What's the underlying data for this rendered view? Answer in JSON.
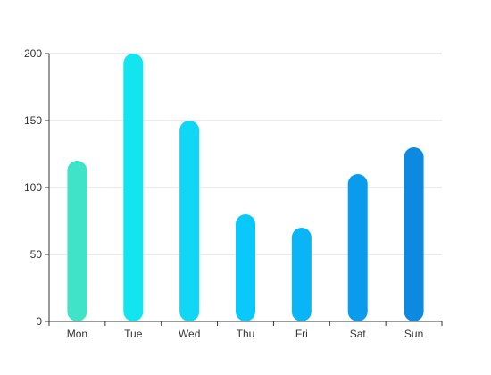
{
  "chart_data": {
    "type": "bar",
    "categories": [
      "Mon",
      "Tue",
      "Wed",
      "Thu",
      "Fri",
      "Sat",
      "Sun"
    ],
    "values": [
      120,
      200,
      150,
      80,
      70,
      110,
      130
    ],
    "colors": [
      "#3fe3c8",
      "#13e5f0",
      "#0fd7f5",
      "#0bc8fb",
      "#0ab5f7",
      "#099cec",
      "#0d89e0"
    ],
    "ylim": [
      0,
      200
    ],
    "yticks": [
      0,
      50,
      100,
      150,
      200
    ],
    "grid": true,
    "bar_style": "rounded"
  }
}
